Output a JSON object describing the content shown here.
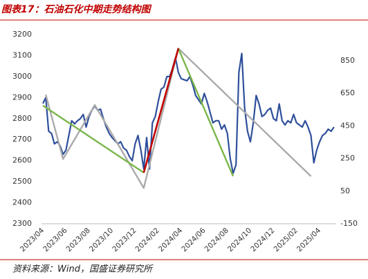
{
  "chart_data": {
    "type": "line",
    "title": "图表17：石油石化中期走势结构图",
    "source": "资料来源：Wind，国盛证券研究所",
    "categories": [
      "2023/04",
      null,
      null,
      null,
      null,
      null,
      null,
      null,
      "2023/06",
      null,
      null,
      null,
      null,
      null,
      null,
      null,
      "2023/08",
      null,
      null,
      null,
      null,
      null,
      null,
      null,
      "2023/10",
      null,
      null,
      null,
      null,
      null,
      null,
      null,
      "2023/12",
      null,
      null,
      null,
      null,
      null,
      null,
      null,
      "2024/02",
      null,
      null,
      null,
      null,
      null,
      null,
      null,
      "2024/04",
      null,
      null,
      null,
      null,
      null,
      null,
      null,
      "2024/06",
      null,
      null,
      null,
      null,
      null,
      null,
      null,
      "2024/08",
      null,
      null,
      null,
      null,
      null,
      null,
      null,
      "2024/10",
      null,
      null,
      null,
      null,
      null,
      null,
      null,
      "2024/12",
      null,
      null,
      null,
      null,
      null,
      null,
      null,
      "2025/02",
      null,
      null,
      null,
      null,
      null,
      null,
      null,
      "2025/04",
      null,
      null,
      null,
      null,
      null
    ],
    "ylim": [
      2300,
      3200
    ],
    "yticks": [
      2300,
      2400,
      2500,
      2600,
      2700,
      2800,
      2900,
      3000,
      3100,
      3200
    ],
    "y2lim": [
      -150,
      1010
    ],
    "y2ticks": [
      -150,
      50,
      250,
      450,
      650,
      850
    ],
    "grid": false,
    "series": [
      {
        "color": "#2e4f9a",
        "width": 2.2,
        "values": [
          2872,
          2900,
          2740,
          2730,
          2680,
          2690,
          2670,
          2630,
          2650,
          2720,
          2790,
          2775,
          2790,
          2800,
          2820,
          2760,
          2810,
          2840,
          2860,
          2840,
          2845,
          2800,
          2760,
          2730,
          2710,
          2695,
          2680,
          2690,
          2660,
          2650,
          2620,
          2600,
          2680,
          2720,
          2650,
          2560,
          2710,
          2560,
          2780,
          2810,
          2880,
          2940,
          2950,
          3000,
          3000,
          3040,
          3090,
          3020,
          2990,
          2985,
          2980,
          3000,
          2960,
          2910,
          2890,
          2870,
          2920,
          2880,
          2830,
          2780,
          2790,
          2790,
          2750,
          2770,
          2730,
          2610,
          2540,
          2580,
          3020,
          3110,
          2850,
          2740,
          2690,
          2780,
          2910,
          2870,
          2810,
          2820,
          2840,
          2850,
          2800,
          2790,
          2870,
          2790,
          2770,
          2790,
          2780,
          2820,
          2780,
          2770,
          2760,
          2790,
          2760,
          2720,
          2590,
          2650,
          2690,
          2720,
          2730,
          2750,
          2740,
          2760
        ]
      },
      {
        "color": "#aaaaaa",
        "width": 2.4,
        "connect_gaps": true,
        "values": [
          null,
          2914,
          null,
          null,
          null,
          null,
          null,
          2608,
          null,
          null,
          null,
          null,
          null,
          null,
          null,
          null,
          null,
          null,
          2865,
          null,
          null,
          null,
          null,
          null,
          null,
          null,
          null,
          null,
          null,
          null,
          null,
          null,
          null,
          null,
          null,
          2470,
          null,
          null,
          null,
          null,
          null,
          null,
          null,
          null,
          null,
          null,
          null,
          3134,
          null,
          null,
          null,
          null,
          null,
          null,
          null,
          null,
          null,
          null,
          null,
          null,
          null,
          null,
          null,
          null,
          null,
          null,
          null,
          null,
          null,
          null,
          null,
          null,
          null,
          null,
          null,
          null,
          null,
          null,
          null,
          null,
          null,
          null,
          null,
          null,
          null,
          null,
          null,
          null,
          null,
          null,
          null,
          null,
          null,
          2526,
          null,
          null,
          null,
          null,
          null,
          null,
          null,
          null
        ]
      },
      {
        "color": "#7ab648",
        "width": 2.4,
        "connect_gaps": true,
        "values": [
          2862,
          null,
          null,
          null,
          null,
          null,
          null,
          null,
          null,
          null,
          null,
          null,
          null,
          null,
          null,
          null,
          null,
          null,
          null,
          null,
          null,
          null,
          null,
          null,
          null,
          null,
          null,
          null,
          null,
          null,
          null,
          null,
          null,
          null,
          null,
          2543,
          null,
          null,
          null,
          null,
          null,
          null,
          null,
          null,
          null,
          null,
          null,
          null,
          null,
          null,
          null,
          null,
          null,
          null,
          null,
          null,
          null,
          null,
          null,
          null,
          null,
          null,
          null,
          null,
          null,
          null,
          null,
          null,
          null,
          null,
          null,
          null,
          null,
          null,
          null,
          null,
          null,
          null,
          null,
          null,
          null,
          null,
          null,
          null,
          null,
          null,
          null,
          null,
          null,
          null,
          null,
          null,
          null,
          null,
          null,
          null,
          null,
          null,
          null,
          null,
          null,
          null
        ]
      },
      {
        "color": "#7ab648",
        "width": 2.4,
        "connect_gaps": true,
        "values": [
          null,
          null,
          null,
          null,
          null,
          null,
          null,
          null,
          null,
          null,
          null,
          null,
          null,
          null,
          null,
          null,
          null,
          null,
          null,
          null,
          null,
          null,
          null,
          null,
          null,
          null,
          null,
          null,
          null,
          null,
          null,
          null,
          null,
          null,
          null,
          null,
          null,
          null,
          null,
          null,
          null,
          null,
          null,
          null,
          null,
          null,
          null,
          3134,
          null,
          null,
          null,
          null,
          null,
          null,
          null,
          null,
          null,
          null,
          null,
          null,
          null,
          null,
          null,
          null,
          null,
          null,
          2526,
          null,
          null,
          null,
          null,
          null,
          null,
          null,
          null,
          null,
          null,
          null,
          null,
          null,
          null,
          null,
          null,
          null,
          null,
          null,
          null,
          null,
          null,
          null,
          null,
          null,
          null,
          null,
          null,
          null,
          null,
          null,
          null,
          null,
          null,
          null
        ]
      },
      {
        "color": "#c00000",
        "width": 2.6,
        "connect_gaps": true,
        "values": [
          null,
          null,
          null,
          null,
          null,
          null,
          null,
          null,
          null,
          null,
          null,
          null,
          null,
          null,
          null,
          null,
          null,
          null,
          null,
          null,
          null,
          null,
          null,
          null,
          null,
          null,
          null,
          null,
          null,
          null,
          null,
          null,
          null,
          null,
          null,
          2543,
          null,
          null,
          null,
          null,
          null,
          null,
          null,
          null,
          null,
          null,
          null,
          3134,
          null,
          null,
          null,
          null,
          null,
          null,
          null,
          null,
          null,
          null,
          null,
          null,
          null,
          null,
          null,
          null,
          null,
          null,
          null,
          null,
          null,
          null,
          null,
          null,
          null,
          null,
          null,
          null,
          null,
          null,
          null,
          null,
          null,
          null,
          null,
          null,
          null,
          null,
          null,
          null,
          null,
          null,
          null,
          null,
          null,
          null,
          null,
          null,
          null,
          null,
          null,
          null,
          null,
          null
        ]
      }
    ]
  }
}
